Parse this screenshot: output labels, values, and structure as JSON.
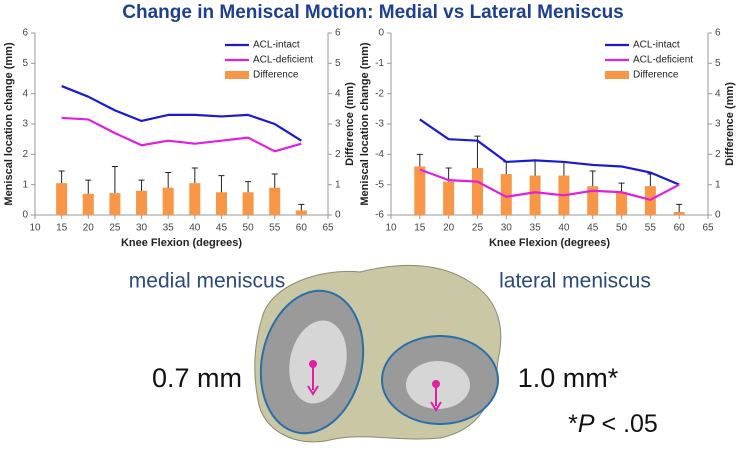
{
  "title": "Change in Meniscal Motion: Medial vs Lateral Meniscus",
  "chart_data": [
    {
      "type": "line",
      "x_label": "Knee Flexion (degrees)",
      "y_label": "Meniscal location change (mm)",
      "y2_label": "Difference (mm)",
      "x": [
        15,
        20,
        25,
        30,
        35,
        40,
        45,
        50,
        55,
        60
      ],
      "xlim": [
        10,
        65
      ],
      "xticks": [
        10,
        15,
        20,
        25,
        30,
        35,
        40,
        45,
        50,
        55,
        60,
        65
      ],
      "ylim": [
        0,
        6
      ],
      "yticks": [
        0,
        1,
        2,
        3,
        4,
        5,
        6
      ],
      "y2lim": [
        0,
        6
      ],
      "y2ticks": [
        0,
        1,
        2,
        3,
        4,
        5,
        6
      ],
      "legend": "top-right",
      "grid": false,
      "series": [
        {
          "name": "ACL-intact",
          "type": "line",
          "color": "#1a1ad0",
          "values": [
            4.25,
            3.9,
            3.45,
            3.1,
            3.3,
            3.3,
            3.25,
            3.3,
            3.0,
            2.45
          ]
        },
        {
          "name": "ACL-deficient",
          "type": "line",
          "color": "#e020e0",
          "values": [
            3.2,
            3.15,
            2.7,
            2.3,
            2.45,
            2.35,
            2.45,
            2.55,
            2.1,
            2.35
          ]
        },
        {
          "name": "Difference",
          "type": "bar",
          "axis": "y2",
          "color": "#f79646",
          "values": [
            1.05,
            0.7,
            0.72,
            0.8,
            0.9,
            1.05,
            0.75,
            0.75,
            0.9,
            0.15
          ],
          "errors": [
            0.4,
            0.45,
            0.88,
            0.35,
            0.5,
            0.5,
            0.55,
            0.35,
            0.45,
            0.2
          ]
        }
      ]
    },
    {
      "type": "line",
      "x_label": "Knee Flexion (degrees)",
      "y_label": "Meniscal location change (mm)",
      "y2_label": "Difference (mm)",
      "x": [
        15,
        20,
        25,
        30,
        35,
        40,
        45,
        50,
        55,
        60
      ],
      "xlim": [
        10,
        65
      ],
      "xticks": [
        10,
        15,
        20,
        25,
        30,
        35,
        40,
        45,
        50,
        55,
        60,
        65
      ],
      "ylim": [
        -6,
        0
      ],
      "yticks": [
        -6,
        -5,
        -4,
        -3,
        -2,
        -1,
        0
      ],
      "y2lim": [
        0,
        6
      ],
      "y2ticks": [
        0,
        1,
        2,
        3,
        4,
        5,
        6
      ],
      "legend": "top-right",
      "grid": false,
      "series": [
        {
          "name": "ACL-intact",
          "type": "line",
          "color": "#1a1ad0",
          "values": [
            -2.85,
            -3.5,
            -3.55,
            -4.25,
            -4.2,
            -4.25,
            -4.35,
            -4.4,
            -4.6,
            -5.0
          ]
        },
        {
          "name": "ACL-deficient",
          "type": "line",
          "color": "#e020e0",
          "values": [
            -4.5,
            -4.85,
            -4.9,
            -5.4,
            -5.25,
            -5.35,
            -5.2,
            -5.25,
            -5.5,
            -5.0
          ]
        },
        {
          "name": "Difference",
          "type": "bar",
          "axis": "y2",
          "color": "#f79646",
          "values": [
            1.6,
            1.1,
            1.55,
            1.35,
            1.3,
            1.3,
            0.95,
            0.75,
            0.95,
            0.1
          ],
          "errors": [
            0.4,
            0.45,
            1.05,
            0.4,
            0.5,
            0.45,
            0.5,
            0.3,
            0.4,
            0.25
          ]
        }
      ]
    }
  ],
  "labels": {
    "medial": "medial meniscus",
    "lateral": "lateral meniscus",
    "medial_value": "0.7 mm",
    "lateral_value": "1.0 mm*",
    "note": {
      "prefix": "*",
      "italic": "P",
      "suffix": " < .05"
    }
  }
}
